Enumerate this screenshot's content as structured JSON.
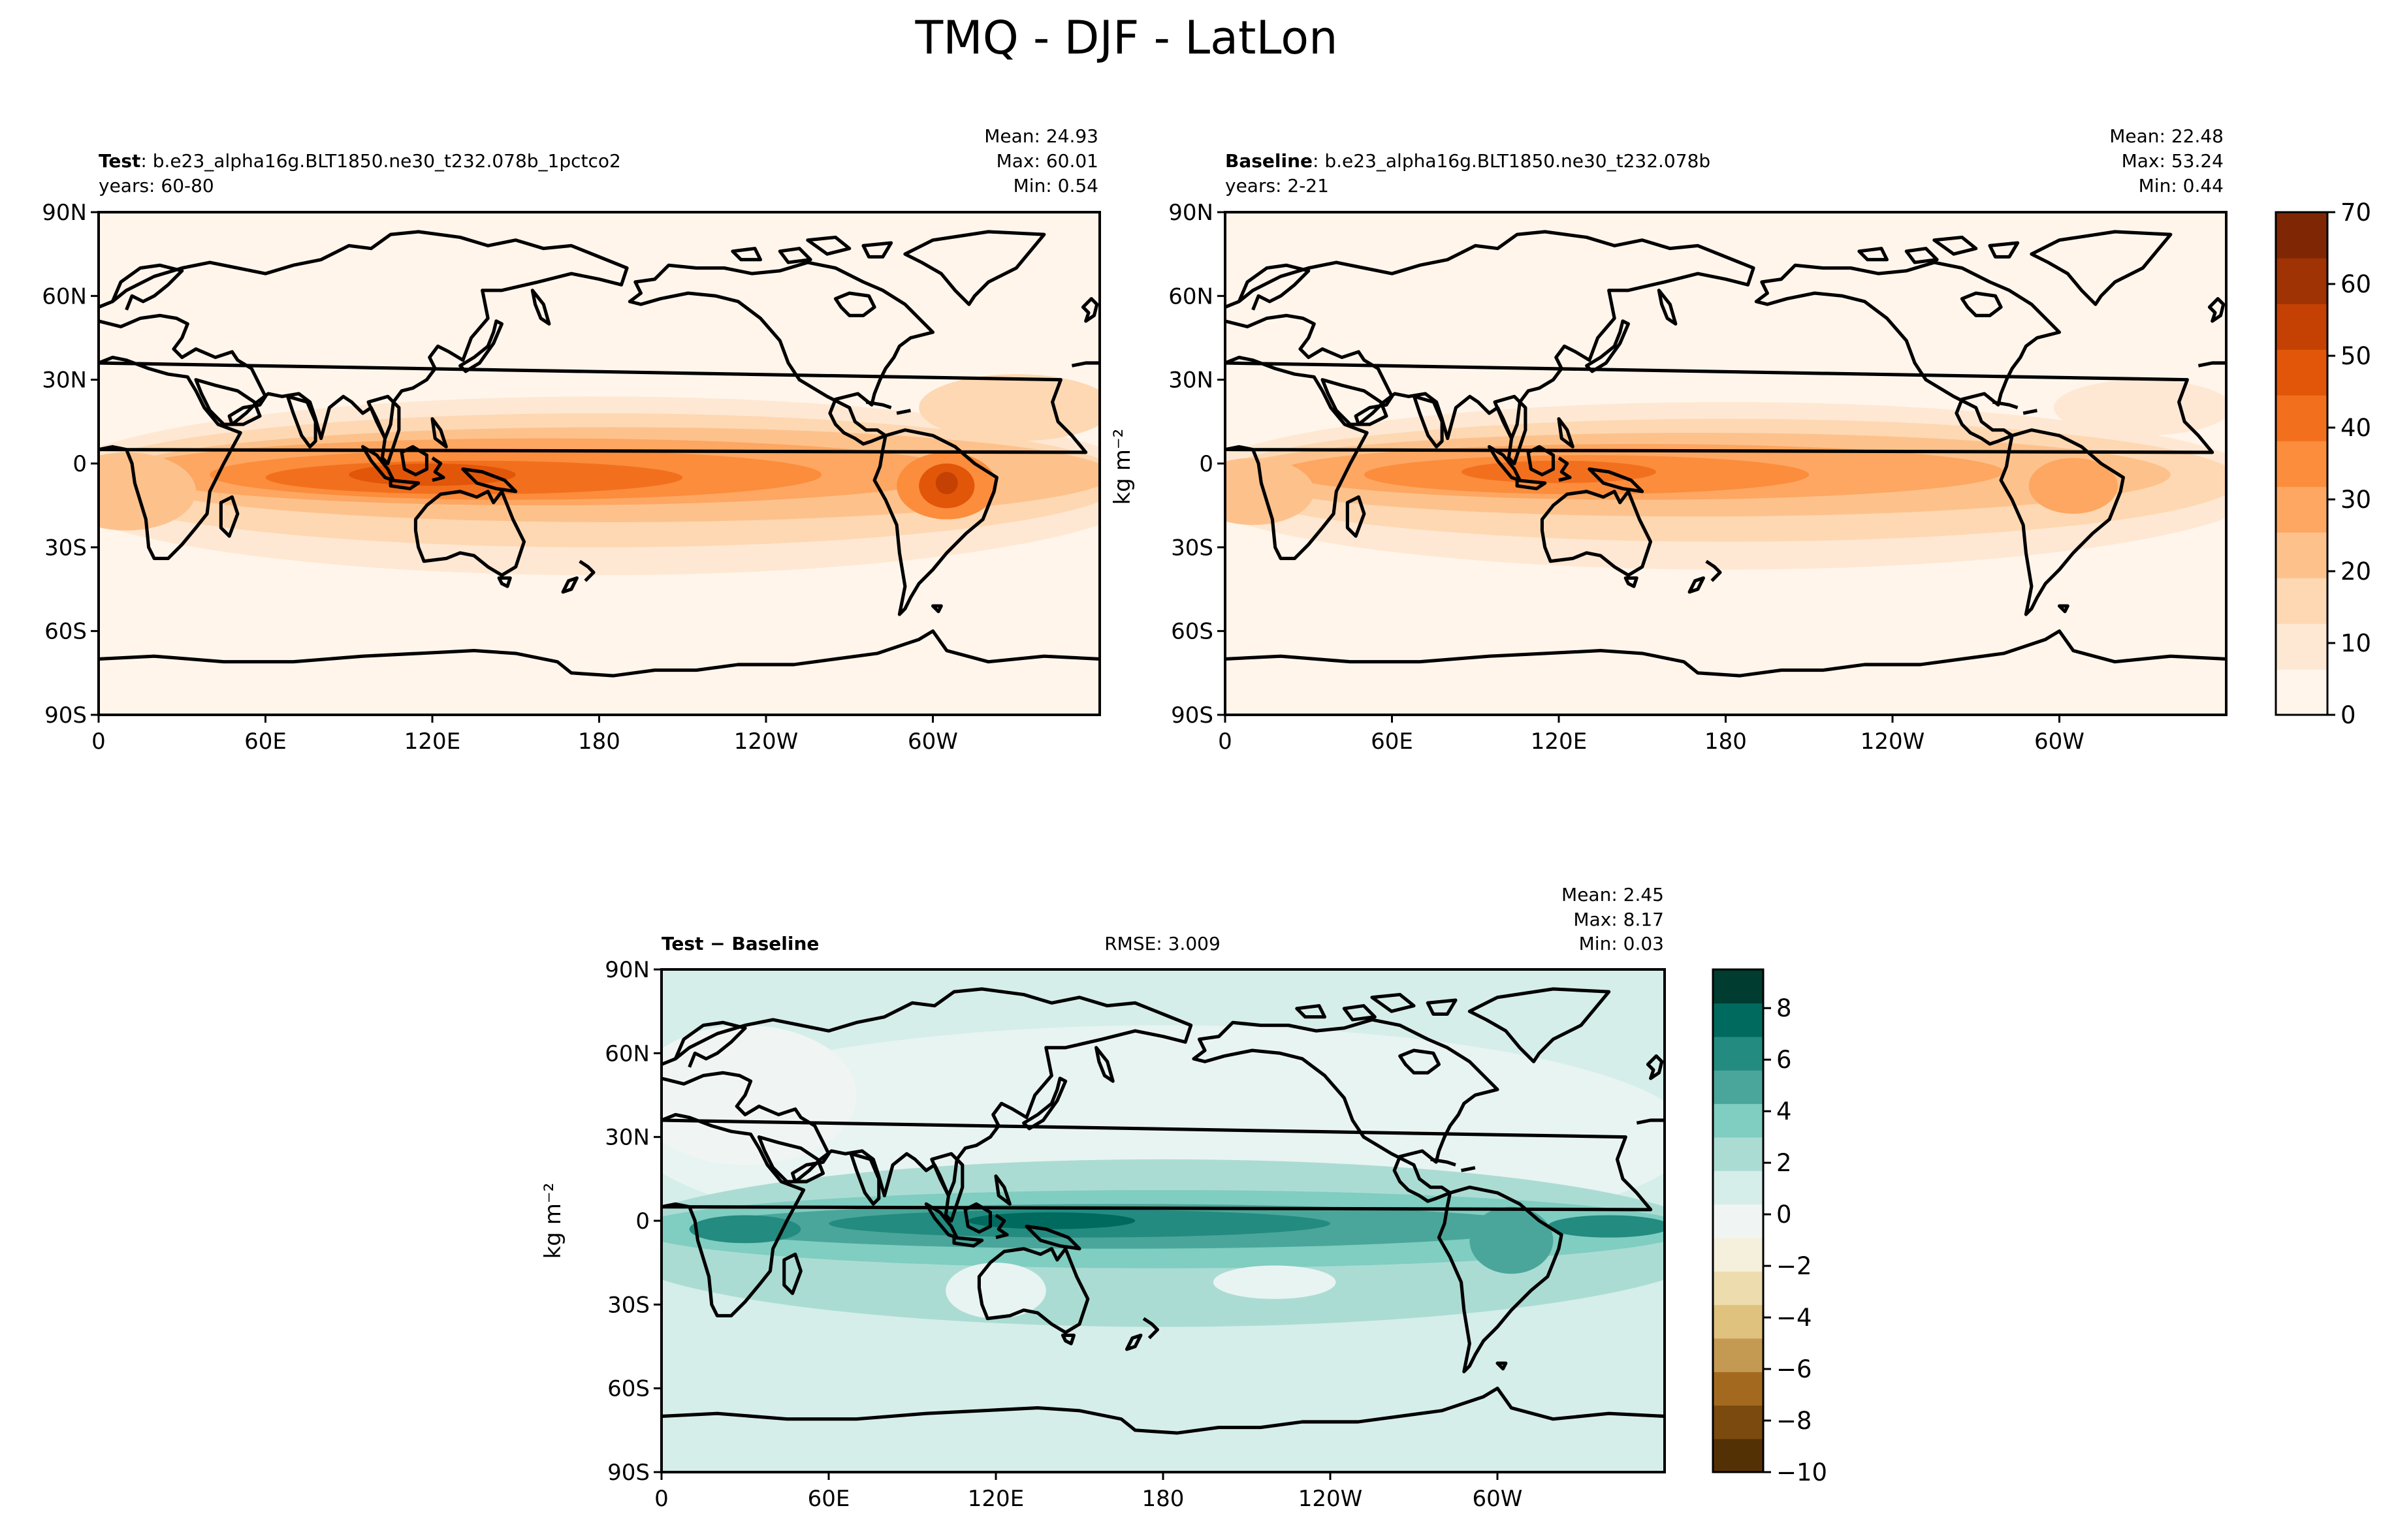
{
  "figure": {
    "title": "TMQ - DJF - LatLon"
  },
  "panels": {
    "test": {
      "label_bold": "Test",
      "label_rest": ": b.e23_alpha16g.BLT1850.ne30_t232.078b_1pctco2",
      "years": "years: 60-80",
      "stats": [
        "Mean: 24.93",
        "Max: 60.01",
        "Min:  0.54"
      ]
    },
    "baseline": {
      "label_bold": "Baseline",
      "label_rest": ": b.e23_alpha16g.BLT1850.ne30_t232.078b",
      "years": "years: 2-21",
      "stats": [
        "Mean: 22.48",
        "Max: 53.24",
        "Min:  0.44"
      ]
    },
    "diff": {
      "label": "Test − Baseline",
      "rmse": "RMSE: 3.009",
      "stats": [
        "Mean:  2.45",
        "Max:  8.17",
        "Min:  0.03"
      ]
    }
  },
  "axes": {
    "lat_ticks": [
      "90N",
      "60N",
      "30N",
      "0",
      "30S",
      "60S",
      "90S"
    ],
    "lon_ticks": [
      "0",
      "60E",
      "120E",
      "180",
      "120W",
      "60W"
    ]
  },
  "colorbars": {
    "top": {
      "label": "kg m⁻²",
      "ticks": [
        "0",
        "10",
        "20",
        "30",
        "40",
        "50",
        "60",
        "70"
      ],
      "colors": [
        "#fff5eb",
        "#fee8d3",
        "#fdd8b3",
        "#fdc28c",
        "#fda762",
        "#fb8d3d",
        "#f2701d",
        "#e25609",
        "#c44103",
        "#9f3303",
        "#7f2704"
      ]
    },
    "diff": {
      "label": "kg m⁻²",
      "ticks": [
        "−10",
        "−8",
        "−6",
        "−4",
        "−2",
        "0",
        "2",
        "4",
        "6",
        "8"
      ],
      "colors": [
        "#543005",
        "#7b4a0e",
        "#a36a1f",
        "#c49a52",
        "#dfc27d",
        "#ecdcae",
        "#f5f0dc",
        "#f0f5f4",
        "#d5eeea",
        "#abdcd3",
        "#80cdc1",
        "#4aa69a",
        "#238b80",
        "#016a5f",
        "#003c30"
      ]
    }
  },
  "chart_data": [
    {
      "type": "heatmap",
      "name": "test",
      "variable": "TMQ",
      "units": "kg m-2",
      "x_ticks": [
        "0",
        "60E",
        "120E",
        "180",
        "120W",
        "60W"
      ],
      "y_ticks": [
        "90N",
        "60N",
        "30N",
        "0",
        "30S",
        "60S",
        "90S"
      ],
      "xlim": [
        0,
        360
      ],
      "ylim": [
        -90,
        90
      ],
      "clim": [
        0,
        70
      ],
      "mean": 24.93,
      "max": 60.01,
      "min": 0.54
    },
    {
      "type": "heatmap",
      "name": "baseline",
      "variable": "TMQ",
      "units": "kg m-2",
      "x_ticks": [
        "0",
        "60E",
        "120E",
        "180",
        "120W",
        "60W"
      ],
      "y_ticks": [
        "90N",
        "60N",
        "30N",
        "0",
        "30S",
        "60S",
        "90S"
      ],
      "xlim": [
        0,
        360
      ],
      "ylim": [
        -90,
        90
      ],
      "clim": [
        0,
        70
      ],
      "mean": 22.48,
      "max": 53.24,
      "min": 0.44
    },
    {
      "type": "heatmap",
      "name": "difference",
      "variable": "TMQ",
      "units": "kg m-2",
      "x_ticks": [
        "0",
        "60E",
        "120E",
        "180",
        "120W",
        "60W"
      ],
      "y_ticks": [
        "90N",
        "60N",
        "30N",
        "0",
        "30S",
        "60S",
        "90S"
      ],
      "xlim": [
        0,
        360
      ],
      "ylim": [
        -90,
        90
      ],
      "clim": [
        -10,
        9.5
      ],
      "mean": 2.45,
      "max": 8.17,
      "min": 0.03,
      "rmse": 3.009
    }
  ]
}
